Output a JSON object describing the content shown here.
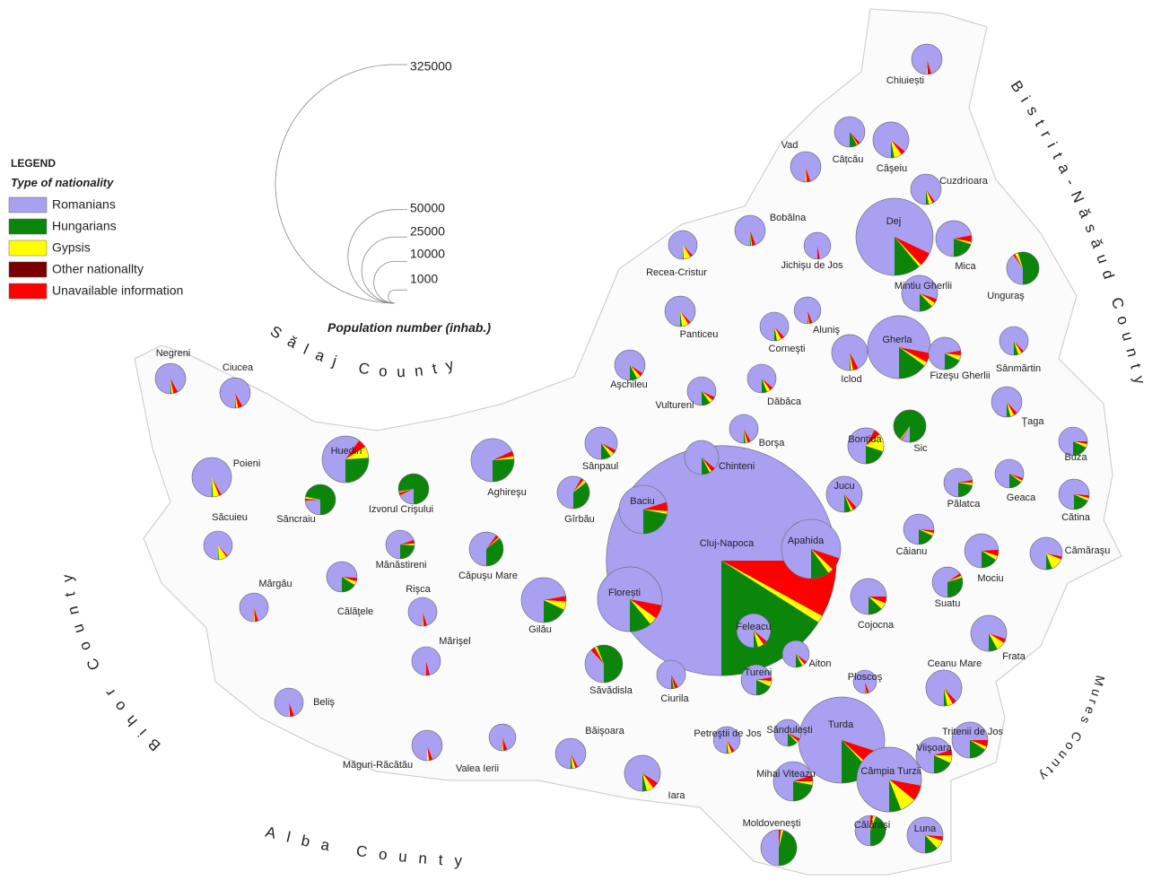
{
  "map": {
    "legend": {
      "title": "LEGEND",
      "subtitle": "Type of nationality",
      "items": [
        {
          "name": "Romanians",
          "color": "#a9a0f2"
        },
        {
          "name": "Hungarians",
          "color": "#0b860b"
        },
        {
          "name": "Gypsis",
          "color": "#ffff00"
        },
        {
          "name": "Other nationallty",
          "color": "#7a0000"
        },
        {
          "name": "Unavailable information",
          "color": "#ff0000"
        }
      ]
    },
    "size_legend": {
      "title": "Population number (inhab.)",
      "values": [
        325000,
        50000,
        25000,
        10000,
        1000
      ]
    },
    "counties": [
      "Sălaj County",
      "Bihor County",
      "Bistrita-Năsăud County",
      "Mures County",
      "Alba County"
    ],
    "localities": [
      {
        "name": "Cluj-Napoca",
        "population": 302000,
        "shares": [
          75,
          16,
          1,
          0,
          8
        ]
      },
      {
        "name": "Turda",
        "population": 42400,
        "shares": [
          80,
          12,
          1,
          0,
          7
        ]
      },
      {
        "name": "Dej",
        "population": 34000,
        "shares": [
          82,
          11,
          1,
          0,
          6
        ]
      },
      {
        "name": "Câmpia Turzii",
        "population": 23900,
        "shares": [
          78,
          6,
          8,
          0,
          8
        ]
      },
      {
        "name": "Florești",
        "population": 23900,
        "shares": [
          78,
          11,
          4,
          0,
          7
        ]
      },
      {
        "name": "Gherla",
        "population": 22600,
        "shares": [
          78,
          15,
          2,
          0,
          5
        ]
      },
      {
        "name": "Apahida",
        "population": 20000,
        "shares": [
          80,
          10,
          3,
          0,
          7
        ]
      },
      {
        "name": "Baciu",
        "population": 13400,
        "shares": [
          70,
          22,
          2,
          0,
          6
        ]
      },
      {
        "name": "Huedin",
        "population": 12400,
        "shares": [
          60,
          26,
          8,
          0,
          6
        ]
      },
      {
        "name": "Gilău",
        "population": 11500,
        "shares": [
          72,
          18,
          6,
          0,
          4
        ]
      },
      {
        "name": "Aghireşu",
        "population": 10600,
        "shares": [
          68,
          26,
          2,
          0,
          4
        ]
      },
      {
        "name": "Chiuiești",
        "population": 5300,
        "shares": [
          95,
          0,
          1,
          1,
          3
        ]
      },
      {
        "name": "Câțcău",
        "population": 5300,
        "shares": [
          88,
          8,
          1,
          0,
          3
        ]
      },
      {
        "name": "Căşeiu",
        "population": 7400,
        "shares": [
          86,
          3,
          7,
          0,
          4
        ]
      },
      {
        "name": "Vad",
        "population": 5300,
        "shares": [
          95,
          0,
          1,
          0,
          4
        ]
      },
      {
        "name": "Cuzdrioara",
        "population": 5300,
        "shares": [
          90,
          3,
          4,
          0,
          3
        ]
      },
      {
        "name": "Mica",
        "population": 7400,
        "shares": [
          72,
          20,
          2,
          0,
          6
        ]
      },
      {
        "name": "Bobâlna",
        "population": 5300,
        "shares": [
          94,
          1,
          1,
          0,
          4
        ]
      },
      {
        "name": "Jichişu de Jos",
        "population": 4100,
        "shares": [
          97,
          0,
          0,
          0,
          3
        ]
      },
      {
        "name": "Recea-Cristur",
        "population": 4700,
        "shares": [
          88,
          1,
          8,
          0,
          3
        ]
      },
      {
        "name": "Unguraş",
        "population": 6000,
        "shares": [
          40,
          55,
          3,
          0,
          2
        ]
      },
      {
        "name": "Mintiu Gherlii",
        "population": 7400,
        "shares": [
          80,
          12,
          4,
          0,
          4
        ]
      },
      {
        "name": "Panticeu",
        "population": 5300,
        "shares": [
          88,
          2,
          7,
          0,
          3
        ]
      },
      {
        "name": "Aluniş",
        "population": 4100,
        "shares": [
          94,
          1,
          1,
          0,
          4
        ]
      },
      {
        "name": "Corneşti",
        "population": 4700,
        "shares": [
          88,
          3,
          5,
          0,
          4
        ]
      },
      {
        "name": "Iclod",
        "population": 7400,
        "shares": [
          92,
          1,
          2,
          0,
          5
        ]
      },
      {
        "name": "Fizeşu Gherlii",
        "population": 6000,
        "shares": [
          72,
          18,
          5,
          0,
          5
        ]
      },
      {
        "name": "Sânmărtin",
        "population": 4700,
        "shares": [
          88,
          5,
          4,
          0,
          3
        ]
      },
      {
        "name": "Aşchileu",
        "population": 5300,
        "shares": [
          84,
          8,
          4,
          0,
          4
        ]
      },
      {
        "name": "Vultureni",
        "population": 4700,
        "shares": [
          82,
          10,
          4,
          0,
          4
        ]
      },
      {
        "name": "Dăbâca",
        "population": 4700,
        "shares": [
          86,
          6,
          4,
          0,
          4
        ]
      },
      {
        "name": "Ţaga",
        "population": 5300,
        "shares": [
          88,
          4,
          4,
          0,
          4
        ]
      },
      {
        "name": "Borşa",
        "population": 4700,
        "shares": [
          92,
          2,
          2,
          0,
          4
        ]
      },
      {
        "name": "Sic",
        "population": 6000,
        "shares": [
          8,
          90,
          1,
          0,
          1
        ]
      },
      {
        "name": "Bonțida",
        "population": 7400,
        "shares": [
          58,
          20,
          16,
          0,
          6
        ]
      },
      {
        "name": "Buza",
        "population": 4700,
        "shares": [
          75,
          18,
          4,
          0,
          3
        ]
      },
      {
        "name": "Sânpaul",
        "population": 6000,
        "shares": [
          82,
          10,
          4,
          0,
          4
        ]
      },
      {
        "name": "Chinteni",
        "population": 6600,
        "shares": [
          86,
          8,
          2,
          0,
          4
        ]
      },
      {
        "name": "Poieni",
        "population": 8900,
        "shares": [
          92,
          1,
          5,
          0,
          2
        ]
      },
      {
        "name": "Izvorul Crişului",
        "population": 5300,
        "shares": [
          18,
          78,
          1,
          0,
          3
        ]
      },
      {
        "name": "Sâncraiu",
        "population": 5300,
        "shares": [
          24,
          72,
          2,
          0,
          2
        ]
      },
      {
        "name": "Gîrbău",
        "population": 6000,
        "shares": [
          58,
          36,
          3,
          0,
          3
        ]
      },
      {
        "name": "Pălatca",
        "population": 4700,
        "shares": [
          72,
          22,
          3,
          0,
          3
        ]
      },
      {
        "name": "Geaca",
        "population": 4700,
        "shares": [
          80,
          15,
          2,
          0,
          3
        ]
      },
      {
        "name": "Jucu",
        "population": 7400,
        "shares": [
          88,
          6,
          2,
          0,
          4
        ]
      },
      {
        "name": "Cătina",
        "population": 5300,
        "shares": [
          76,
          18,
          3,
          0,
          3
        ]
      },
      {
        "name": "Săcuieu",
        "population": 4700,
        "shares": [
          88,
          1,
          9,
          0,
          2
        ]
      },
      {
        "name": "Mănăstireni",
        "population": 4700,
        "shares": [
          70,
          24,
          2,
          0,
          4
        ]
      },
      {
        "name": "Căpuşu Mare",
        "population": 6600,
        "shares": [
          60,
          36,
          1,
          0,
          3
        ]
      },
      {
        "name": "Căianu",
        "population": 5300,
        "shares": [
          76,
          18,
          3,
          0,
          3
        ]
      },
      {
        "name": "Mociu",
        "population": 6600,
        "shares": [
          74,
          16,
          4,
          0,
          6
        ]
      },
      {
        "name": "Cămăraşu",
        "population": 6000,
        "shares": [
          78,
          6,
          13,
          0,
          3
        ]
      },
      {
        "name": "Mărgău",
        "population": 4700,
        "shares": [
          95,
          0,
          1,
          0,
          4
        ]
      },
      {
        "name": "Călăţele",
        "population": 5300,
        "shares": [
          76,
          16,
          4,
          0,
          4
        ]
      },
      {
        "name": "Rişca",
        "population": 4700,
        "shares": [
          95,
          0,
          1,
          0,
          4
        ]
      },
      {
        "name": "Suatu",
        "population": 5300,
        "shares": [
          65,
          30,
          2,
          0,
          3
        ]
      },
      {
        "name": "Cojocna",
        "population": 7400,
        "shares": [
          75,
          13,
          6,
          0,
          6
        ]
      },
      {
        "name": "Mărişel",
        "population": 4700,
        "shares": [
          96,
          0,
          0,
          0,
          4
        ]
      },
      {
        "name": "Feleacu",
        "population": 6600,
        "shares": [
          86,
          4,
          6,
          0,
          4
        ]
      },
      {
        "name": "Aiton",
        "population": 4100,
        "shares": [
          85,
          8,
          3,
          0,
          4
        ]
      },
      {
        "name": "Frata",
        "population": 7400,
        "shares": [
          80,
          8,
          8,
          0,
          4
        ]
      },
      {
        "name": "Săvădisla",
        "population": 8100,
        "shares": [
          38,
          56,
          2,
          0,
          4
        ]
      },
      {
        "name": "Ciurila",
        "population": 4700,
        "shares": [
          92,
          3,
          1,
          0,
          4
        ]
      },
      {
        "name": "Tureni",
        "population": 5300,
        "shares": [
          72,
          18,
          6,
          0,
          4
        ]
      },
      {
        "name": "Ploscoş",
        "population": 3100,
        "shares": [
          94,
          1,
          1,
          0,
          4
        ]
      },
      {
        "name": "Ceanu Mare",
        "population": 7400,
        "shares": [
          88,
          3,
          5,
          0,
          4
        ]
      },
      {
        "name": "Beliş",
        "population": 4700,
        "shares": [
          94,
          0,
          1,
          0,
          5
        ]
      },
      {
        "name": "Tritenii de Jos",
        "population": 7400,
        "shares": [
          75,
          16,
          3,
          0,
          6
        ]
      },
      {
        "name": "Băişoara",
        "population": 5300,
        "shares": [
          92,
          2,
          3,
          0,
          3
        ]
      },
      {
        "name": "Petreştii de Jos",
        "population": 4100,
        "shares": [
          90,
          2,
          4,
          0,
          4
        ]
      },
      {
        "name": "Săndulești",
        "population": 4100,
        "shares": [
          82,
          12,
          2,
          0,
          4
        ]
      },
      {
        "name": "Măguri-Răcătău",
        "population": 5300,
        "shares": [
          94,
          0,
          2,
          0,
          4
        ]
      },
      {
        "name": "Valea Ierii",
        "population": 4100,
        "shares": [
          94,
          0,
          1,
          0,
          5
        ]
      },
      {
        "name": "Viişoara",
        "population": 7400,
        "shares": [
          70,
          18,
          7,
          0,
          5
        ]
      },
      {
        "name": "Iara",
        "population": 7400,
        "shares": [
          84,
          4,
          6,
          0,
          6
        ]
      },
      {
        "name": "Mihai Viteazu",
        "population": 8900,
        "shares": [
          70,
          22,
          3,
          0,
          5
        ]
      },
      {
        "name": "Moldoveneşti",
        "population": 7400,
        "shares": [
          50,
          46,
          2,
          0,
          2
        ]
      },
      {
        "name": "Călăraşi",
        "population": 5300,
        "shares": [
          50,
          44,
          3,
          0,
          3
        ]
      },
      {
        "name": "Luna",
        "population": 7400,
        "shares": [
          76,
          12,
          8,
          0,
          4
        ]
      },
      {
        "name": "Negreni",
        "population": 5300,
        "shares": [
          92,
          1,
          2,
          0,
          5
        ]
      },
      {
        "name": "Ciucea",
        "population": 5300,
        "shares": [
          92,
          1,
          2,
          0,
          5
        ]
      }
    ]
  }
}
